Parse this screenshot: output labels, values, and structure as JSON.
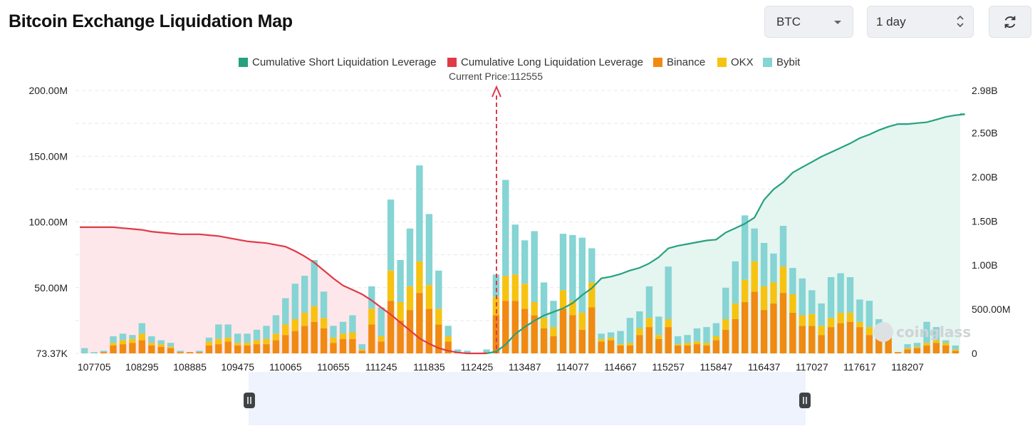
{
  "header": {
    "title": "Bitcoin Exchange Liquidation Map",
    "symbol_select": {
      "value": "BTC"
    },
    "range_select": {
      "value": "1 day"
    },
    "refresh_icon": "refresh-icon"
  },
  "watermark": "coinglass",
  "colors": {
    "short_cum": "#26a17f",
    "short_fill": "#e5f5ef",
    "long_cum": "#e03a48",
    "long_fill": "#fde7ea",
    "binance": "#f08a12",
    "okx": "#f6c312",
    "bybit": "#86d4d4",
    "price_line": "#e03a48",
    "slider": "#eef3fd"
  },
  "chart_data": {
    "type": "bar",
    "title": "Bitcoin Exchange Liquidation Map",
    "legend": [
      "Cumulative Short Liquidation Leverage",
      "Cumulative Long Liquidation Leverage",
      "Binance",
      "OKX",
      "Bybit"
    ],
    "legend_placement": "top-center",
    "current_price_label": "Current Price:112555",
    "current_price": 112555,
    "x_tick_labels": [
      "107705",
      "108295",
      "108885",
      "109475",
      "110065",
      "110655",
      "111245",
      "111835",
      "112425",
      "113487",
      "114077",
      "114667",
      "115257",
      "115847",
      "116437",
      "117027",
      "117617",
      "118207"
    ],
    "x_tick_index": [
      1,
      6,
      11,
      16,
      21,
      26,
      31,
      36,
      41,
      46,
      51,
      56,
      61,
      66,
      71,
      76,
      81,
      86
    ],
    "y_left_tick_labels": [
      "73.37K",
      "50.00M",
      "100.00M",
      "150.00M",
      "200.00M"
    ],
    "y_left_ticks": [
      0,
      50,
      100,
      150,
      200
    ],
    "ylim_left": [
      0,
      200
    ],
    "y_right_tick_labels": [
      "0",
      "500.00M",
      "1.00B",
      "1.50B",
      "2.00B",
      "2.50B",
      "2.98B"
    ],
    "y_right_ticks": [
      0,
      0.5,
      1.0,
      1.5,
      2.0,
      2.5,
      2.98
    ],
    "ylim_right": [
      0,
      2.98
    ],
    "grid": true,
    "bar_units": "M",
    "cumulative_units": "B",
    "binance": [
      0,
      0,
      1,
      6,
      7,
      8,
      10,
      6,
      5,
      4,
      1,
      1,
      1,
      6,
      7,
      9,
      6,
      6,
      7,
      7,
      10,
      14,
      17,
      21,
      24,
      19,
      8,
      11,
      11,
      2,
      22,
      9,
      40,
      25,
      33,
      46,
      34,
      22,
      9,
      1,
      0,
      0,
      1,
      29,
      40,
      40,
      34,
      29,
      19,
      13,
      34,
      29,
      18,
      35,
      9,
      10,
      6,
      6,
      14,
      20,
      11,
      20,
      6,
      6,
      7,
      6,
      10,
      18,
      26,
      39,
      47,
      33,
      38,
      46,
      31,
      21,
      21,
      14,
      20,
      23,
      24,
      20,
      14,
      17,
      13,
      1,
      3,
      4,
      6,
      8,
      6,
      2
    ],
    "okx": [
      0,
      0,
      0,
      2,
      3,
      3,
      5,
      2,
      2,
      1,
      0,
      0,
      0,
      3,
      4,
      3,
      2,
      2,
      3,
      4,
      5,
      8,
      9,
      10,
      12,
      8,
      4,
      4,
      5,
      1,
      12,
      4,
      23,
      14,
      18,
      24,
      18,
      12,
      4,
      0,
      0,
      0,
      0,
      14,
      19,
      20,
      19,
      10,
      8,
      7,
      14,
      11,
      13,
      19,
      2,
      2,
      1,
      2,
      5,
      7,
      3,
      6,
      1,
      2,
      2,
      2,
      3,
      8,
      12,
      17,
      23,
      18,
      16,
      20,
      14,
      8,
      9,
      7,
      7,
      8,
      7,
      4,
      6,
      3,
      1,
      0,
      1,
      1,
      2,
      2,
      2,
      1
    ],
    "bybit": [
      4,
      1,
      1,
      5,
      5,
      3,
      8,
      5,
      3,
      3,
      1,
      0,
      1,
      3,
      11,
      10,
      7,
      7,
      8,
      10,
      14,
      20,
      27,
      28,
      35,
      20,
      9,
      9,
      13,
      4,
      17,
      22,
      54,
      32,
      44,
      73,
      54,
      29,
      8,
      2,
      2,
      0,
      2,
      17,
      73,
      38,
      33,
      54,
      27,
      20,
      43,
      50,
      57,
      26,
      4,
      4,
      10,
      19,
      13,
      24,
      14,
      40,
      6,
      6,
      10,
      12,
      10,
      24,
      32,
      49,
      25,
      33,
      22,
      31,
      20,
      28,
      18,
      17,
      31,
      30,
      27,
      17,
      20,
      6,
      3,
      0,
      3,
      3,
      16,
      10,
      2,
      3
    ],
    "long_cumulative": [
      1.43,
      1.43,
      1.43,
      1.43,
      1.42,
      1.41,
      1.4,
      1.38,
      1.37,
      1.36,
      1.35,
      1.35,
      1.35,
      1.34,
      1.33,
      1.31,
      1.29,
      1.27,
      1.26,
      1.25,
      1.23,
      1.21,
      1.16,
      1.1,
      1.03,
      0.94,
      0.85,
      0.77,
      0.72,
      0.67,
      0.6,
      0.52,
      0.44,
      0.35,
      0.26,
      0.17,
      0.11,
      0.06,
      0.03,
      0.01,
      0.0,
      0.0,
      0.0
    ],
    "short_cumulative_start_index": 42,
    "short_cumulative": [
      0.0,
      0.02,
      0.1,
      0.22,
      0.3,
      0.37,
      0.43,
      0.47,
      0.51,
      0.57,
      0.66,
      0.74,
      0.85,
      0.87,
      0.9,
      0.94,
      0.97,
      1.02,
      1.09,
      1.19,
      1.22,
      1.24,
      1.26,
      1.28,
      1.29,
      1.37,
      1.42,
      1.47,
      1.54,
      1.74,
      1.86,
      1.94,
      2.05,
      2.11,
      2.17,
      2.23,
      2.28,
      2.33,
      2.38,
      2.44,
      2.48,
      2.53,
      2.57,
      2.6,
      2.6,
      2.61,
      2.62,
      2.65,
      2.68,
      2.7,
      2.71
    ]
  }
}
